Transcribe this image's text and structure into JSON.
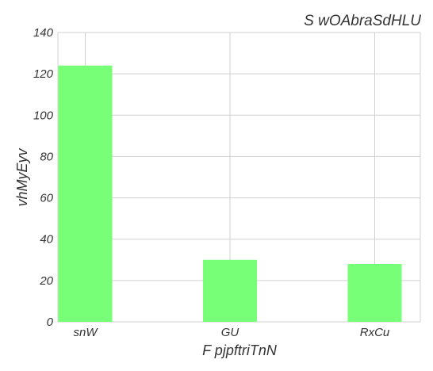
{
  "chart_data": {
    "type": "bar",
    "title": "S wOAbraSdHLU",
    "xlabel": "F pjpftriTnN",
    "ylabel": "vhMyEyv",
    "categories": [
      "snW",
      "GU",
      "RxCu"
    ],
    "values": [
      124,
      30,
      28
    ],
    "ylim": [
      0,
      140
    ],
    "yticks": [
      0,
      20,
      40,
      60,
      80,
      100,
      120,
      140
    ],
    "grid": true,
    "legend": "none",
    "bar_color": "#77ff77",
    "grid_color": "#d0d0d0"
  }
}
